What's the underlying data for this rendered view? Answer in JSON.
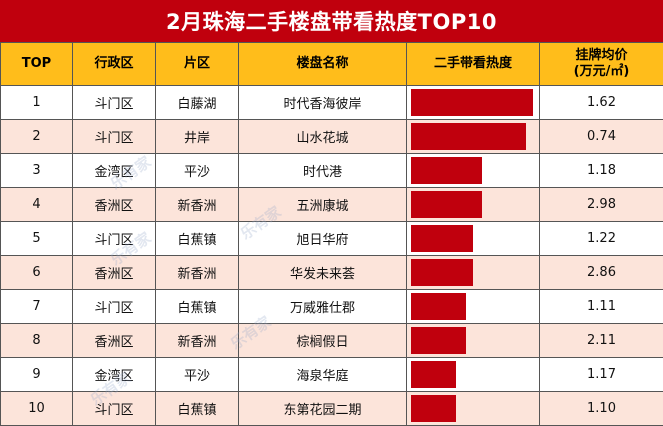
{
  "title": "2月珠海二手楼盘带看热度TOP10",
  "headers": {
    "top": "TOP",
    "district": "行政区",
    "area": "片区",
    "name": "楼盘名称",
    "heat": "二手带看热度",
    "price_line1": "挂牌均价",
    "price_line2": "(万元/㎡)"
  },
  "watermark": "乐有家",
  "colors": {
    "accent": "#c0000d",
    "header": "#ffbd1b",
    "stripe": "#fce4da"
  },
  "chart_data": {
    "type": "table",
    "title": "2月珠海二手楼盘带看热度TOP10",
    "rows": [
      {
        "rank": "1",
        "district": "斗门区",
        "area": "白藤湖",
        "name": "时代香海彼岸",
        "heat": 1.0,
        "price": "1.62"
      },
      {
        "rank": "2",
        "district": "斗门区",
        "area": "井岸",
        "name": "山水花城",
        "heat": 0.94,
        "price": "0.74"
      },
      {
        "rank": "3",
        "district": "金湾区",
        "area": "平沙",
        "name": "时代港",
        "heat": 0.58,
        "price": "1.18"
      },
      {
        "rank": "4",
        "district": "香洲区",
        "area": "新香洲",
        "name": "五洲康城",
        "heat": 0.58,
        "price": "2.98"
      },
      {
        "rank": "5",
        "district": "斗门区",
        "area": "白蕉镇",
        "name": "旭日华府",
        "heat": 0.51,
        "price": "1.22"
      },
      {
        "rank": "6",
        "district": "香洲区",
        "area": "新香洲",
        "name": "华发未来荟",
        "heat": 0.51,
        "price": "2.86"
      },
      {
        "rank": "7",
        "district": "斗门区",
        "area": "白蕉镇",
        "name": "万威雅仕郡",
        "heat": 0.45,
        "price": "1.11"
      },
      {
        "rank": "8",
        "district": "香洲区",
        "area": "新香洲",
        "name": "棕榈假日",
        "heat": 0.45,
        "price": "2.11"
      },
      {
        "rank": "9",
        "district": "金湾区",
        "area": "平沙",
        "name": "海泉华庭",
        "heat": 0.37,
        "price": "1.17"
      },
      {
        "rank": "10",
        "district": "斗门区",
        "area": "白蕉镇",
        "name": "东第花园二期",
        "heat": 0.37,
        "price": "1.10"
      }
    ]
  }
}
